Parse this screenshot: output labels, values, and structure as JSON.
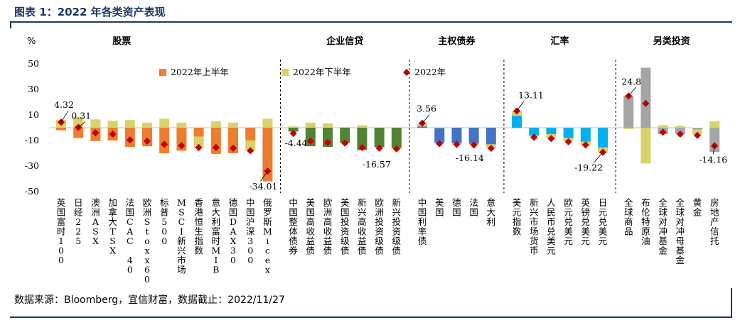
{
  "figure": {
    "title": "图表 1：2022 年各类资产表现",
    "source": "数据来源：Bloomberg，宜信财富，数据截止：2022/11/27"
  },
  "colors": {
    "h1": "#ed7d31",
    "h2": "#d9d26a",
    "dot": "#c00000",
    "equity": "#ed7d31",
    "credit": "#548235",
    "sovereign": "#4472c4",
    "fx": "#00b0f0",
    "alt": "#a5a5a5",
    "title": "#1f3864"
  },
  "chart_data": {
    "type": "bar",
    "y_unit_label": "%",
    "ylim": [
      -50,
      50
    ],
    "yticks": [
      50,
      30,
      10,
      -10,
      -30,
      -50
    ],
    "legend": [
      {
        "key": "h1",
        "label": "2022年上半年",
        "marker": "square"
      },
      {
        "key": "h2",
        "label": "2022年下半年",
        "marker": "square"
      },
      {
        "key": "full",
        "label": "2022年",
        "marker": "diamond"
      }
    ],
    "groups": [
      {
        "label": "股票",
        "color_key": "equity",
        "items": [
          {
            "name": "英国富时100",
            "h1": -2,
            "h2": 6.3,
            "full": 4.32
          },
          {
            "name": "日经225",
            "h1": -8,
            "h2": 8.5,
            "full": 0.31
          },
          {
            "name": "澳洲ASX",
            "h1": -10.5,
            "h2": 6.5,
            "full": -4
          },
          {
            "name": "加拿大TSX",
            "h1": -10,
            "h2": 5.5,
            "full": -5
          },
          {
            "name": "法国CAC 40",
            "h1": -15,
            "h2": 6,
            "full": -9.5
          },
          {
            "name": "欧洲Stoxx600",
            "h1": -14.5,
            "h2": 4,
            "full": -10.5
          },
          {
            "name": "标普500",
            "h1": -20,
            "h2": 7,
            "full": -13
          },
          {
            "name": "MSCI新兴市场",
            "h1": -18,
            "h2": 4,
            "full": -14
          },
          {
            "name": "香港恒生指数",
            "h1": -7,
            "h2": -9,
            "full": -15.5
          },
          {
            "name": "意大利富时MIB",
            "h1": -20.5,
            "h2": 5,
            "full": -15.5
          },
          {
            "name": "德国DAX30",
            "h1": -20,
            "h2": 4,
            "full": -16
          },
          {
            "name": "中国沪深300",
            "h1": -10,
            "h2": -8,
            "full": -18
          },
          {
            "name": "俄罗斯Micex",
            "h1": -42,
            "h2": 7,
            "full": -34.01
          }
        ]
      },
      {
        "label": "企业信贷",
        "color_key": "credit",
        "items": [
          {
            "name": "中国整体债券",
            "h1": -3,
            "h2": 1,
            "full": -4.44
          },
          {
            "name": "美国高收益债",
            "h1": -14.5,
            "h2": 4,
            "full": -10.5
          },
          {
            "name": "欧洲高收益债",
            "h1": -15,
            "h2": 3.5,
            "full": -11.5
          },
          {
            "name": "美国投资级债",
            "h1": -12,
            "h2": 0.5,
            "full": -12
          },
          {
            "name": "新兴高收益债",
            "h1": -17.5,
            "h2": 2,
            "full": -15.5
          },
          {
            "name": "欧洲投资级债",
            "h1": -15,
            "h2": -1,
            "full": -16
          },
          {
            "name": "新兴投资级债",
            "h1": -16,
            "h2": -0.5,
            "full": -16.57
          }
        ]
      },
      {
        "label": "主权债券",
        "color_key": "sovereign",
        "items": [
          {
            "name": "中国利率债",
            "h1": 1,
            "h2": 2.6,
            "full": 3.56
          },
          {
            "name": "美国",
            "h1": -12,
            "h2": 0,
            "full": -12.5
          },
          {
            "name": "德国",
            "h1": -12,
            "h2": -1,
            "full": -13
          },
          {
            "name": "法国",
            "h1": -12.5,
            "h2": -1,
            "full": -13.5
          },
          {
            "name": "意大利",
            "h1": -13,
            "h2": -3,
            "full": -16.14
          }
        ]
      },
      {
        "label": "汇率",
        "color_key": "fx",
        "items": [
          {
            "name": "美元指数",
            "h1": 9.5,
            "h2": 3.6,
            "full": 13.11
          },
          {
            "name": "新兴市场货币",
            "h1": -6,
            "h2": -1,
            "full": -7.5
          },
          {
            "name": "人民币兑美元",
            "h1": -5,
            "h2": -3,
            "full": -8.5
          },
          {
            "name": "欧元兑美元",
            "h1": -8,
            "h2": -2.5,
            "full": -11
          },
          {
            "name": "英镑兑美元",
            "h1": -11,
            "h2": -3,
            "full": -13.5
          },
          {
            "name": "日元兑美元",
            "h1": -15.5,
            "h2": -4,
            "full": -19.22
          }
        ]
      },
      {
        "label": "另类投资",
        "color_key": "alt",
        "items": [
          {
            "name": "全球商品",
            "h1": 25,
            "h2": -1,
            "full": 24.84
          },
          {
            "name": "布伦特原油",
            "h1": 47,
            "h2": -28,
            "full": 19
          },
          {
            "name": "全球对冲基金",
            "h1": -5,
            "h2": 2,
            "full": -3.5
          },
          {
            "name": "全球对冲母基金",
            "h1": -5,
            "h2": 1.5,
            "full": -5
          },
          {
            "name": "黄金",
            "h1": -1.5,
            "h2": -4,
            "full": -6
          },
          {
            "name": "房地产信托",
            "h1": -19,
            "h2": 5,
            "full": -14.16
          }
        ]
      }
    ],
    "value_labels": [
      {
        "item": "英国富时100",
        "text": "4.32"
      },
      {
        "item": "日经225",
        "text": "0.31"
      },
      {
        "item": "俄罗斯Micex",
        "text": "-34.01"
      },
      {
        "item": "中国整体债券",
        "text": "-4.44"
      },
      {
        "item": "新兴投资级债",
        "text": "-16.57"
      },
      {
        "item": "中国利率债",
        "text": "3.56"
      },
      {
        "item": "意大利",
        "text": "-16.14"
      },
      {
        "item": "美元指数",
        "text": "13.11"
      },
      {
        "item": "日元兑美元",
        "text": "-19.22"
      },
      {
        "item": "全球商品",
        "text": "24.84"
      },
      {
        "item": "房地产信托",
        "text": "-14.16"
      }
    ]
  }
}
